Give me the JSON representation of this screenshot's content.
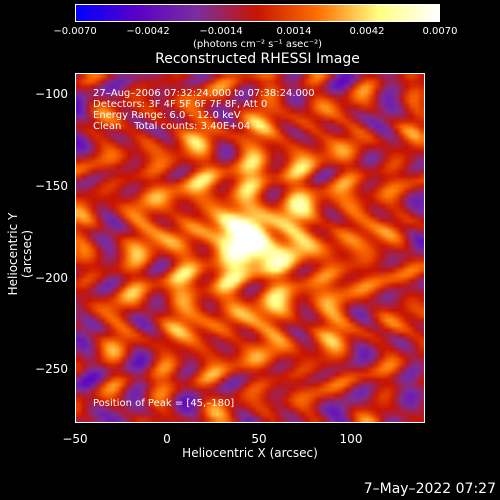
{
  "colorbar": {
    "ticks": [
      "−0.0070",
      "−0.0042",
      "−0.0014",
      "0.0014",
      "0.0042",
      "0.0070"
    ],
    "unit": "(photons cm⁻² s⁻¹ asec⁻²)",
    "colors": [
      "#0000ff",
      "#5a00c8",
      "#7a2ea0",
      "#c81400",
      "#ff7000",
      "#ffff80",
      "#ffffff"
    ]
  },
  "title": "Reconstructed RHESSI Image",
  "info": {
    "line1": "27–Aug–2006 07:32:24.000 to 07:38:24.000",
    "line2": "Detectors: 3F 4F 5F 6F 7F 8F, Att 0",
    "line3": "Energy Range: 6.0 – 12.0 keV",
    "line4": "Clean    Total counts: 3.40E+04",
    "peak": "Position of Peak = [45,–180]"
  },
  "axes": {
    "xlabel": "Heliocentric X (arcsec)",
    "ylabel": "Heliocentric Y (arcsec)",
    "xticks": [
      "−50",
      "0",
      "50",
      "100"
    ],
    "yticks": [
      "−100",
      "−150",
      "−200",
      "−250"
    ],
    "xrange": [
      -50,
      140
    ],
    "yrange": [
      -280,
      -90
    ]
  },
  "chart_data": {
    "type": "heatmap",
    "title": "Reconstructed RHESSI Image",
    "xlabel": "Heliocentric X (arcsec)",
    "ylabel": "Heliocentric Y (arcsec)",
    "xlim": [
      -50,
      140
    ],
    "ylim": [
      -280,
      -90
    ],
    "colorbar_range": [
      -0.007,
      0.007
    ],
    "peak_position": [
      45,
      -180
    ]
  },
  "footer": "7–May–2022 07:27"
}
